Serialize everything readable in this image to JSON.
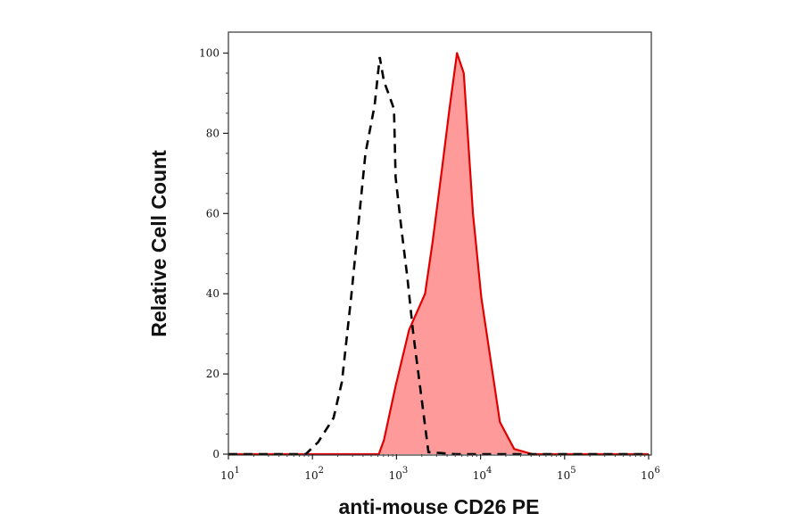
{
  "chart_data": {
    "type": "area",
    "title": "",
    "xlabel": "anti-mouse CD26 PE",
    "ylabel": "Relative Cell Count",
    "xscale": "log",
    "xlim": [
      10,
      1000000
    ],
    "ylim": [
      0,
      105
    ],
    "grid": false,
    "x_tick_labels": [
      {
        "base": "10",
        "exp": "1",
        "value": 10
      },
      {
        "base": "10",
        "exp": "2",
        "value": 100
      },
      {
        "base": "10",
        "exp": "3",
        "value": 1000
      },
      {
        "base": "10",
        "exp": "4",
        "value": 10000
      },
      {
        "base": "10",
        "exp": "5",
        "value": 100000
      },
      {
        "base": "10",
        "exp": "6",
        "value": 1000000
      }
    ],
    "y_tick_labels": [
      "0",
      "20",
      "40",
      "60",
      "80",
      "100"
    ],
    "series": [
      {
        "style": "dashed-line",
        "color": "#000000",
        "x": [
          10,
          83,
          117,
          178,
          224,
          288,
          355,
          427,
          550,
          631,
          708,
          832,
          933,
          977,
          1148,
          1349,
          1585,
          2042,
          2399,
          5000,
          1000000
        ],
        "y": [
          0,
          0,
          3,
          9,
          18,
          39,
          58,
          75,
          87,
          99,
          93,
          89,
          86,
          69,
          56,
          44,
          30,
          12,
          0.5,
          0,
          0
        ]
      },
      {
        "style": "filled",
        "color": "#e00000",
        "fill": "#ff9a9a",
        "x": [
          10,
          617,
          708,
          977,
          1413,
          2188,
          2692,
          3467,
          4266,
          5248,
          6310,
          8128,
          10233,
          16982,
          25119,
          41687,
          1000000
        ],
        "y": [
          0,
          0,
          3.5,
          17,
          31,
          40,
          53,
          71,
          86,
          100,
          95,
          60,
          39,
          8,
          1.3,
          0,
          0
        ]
      }
    ]
  }
}
